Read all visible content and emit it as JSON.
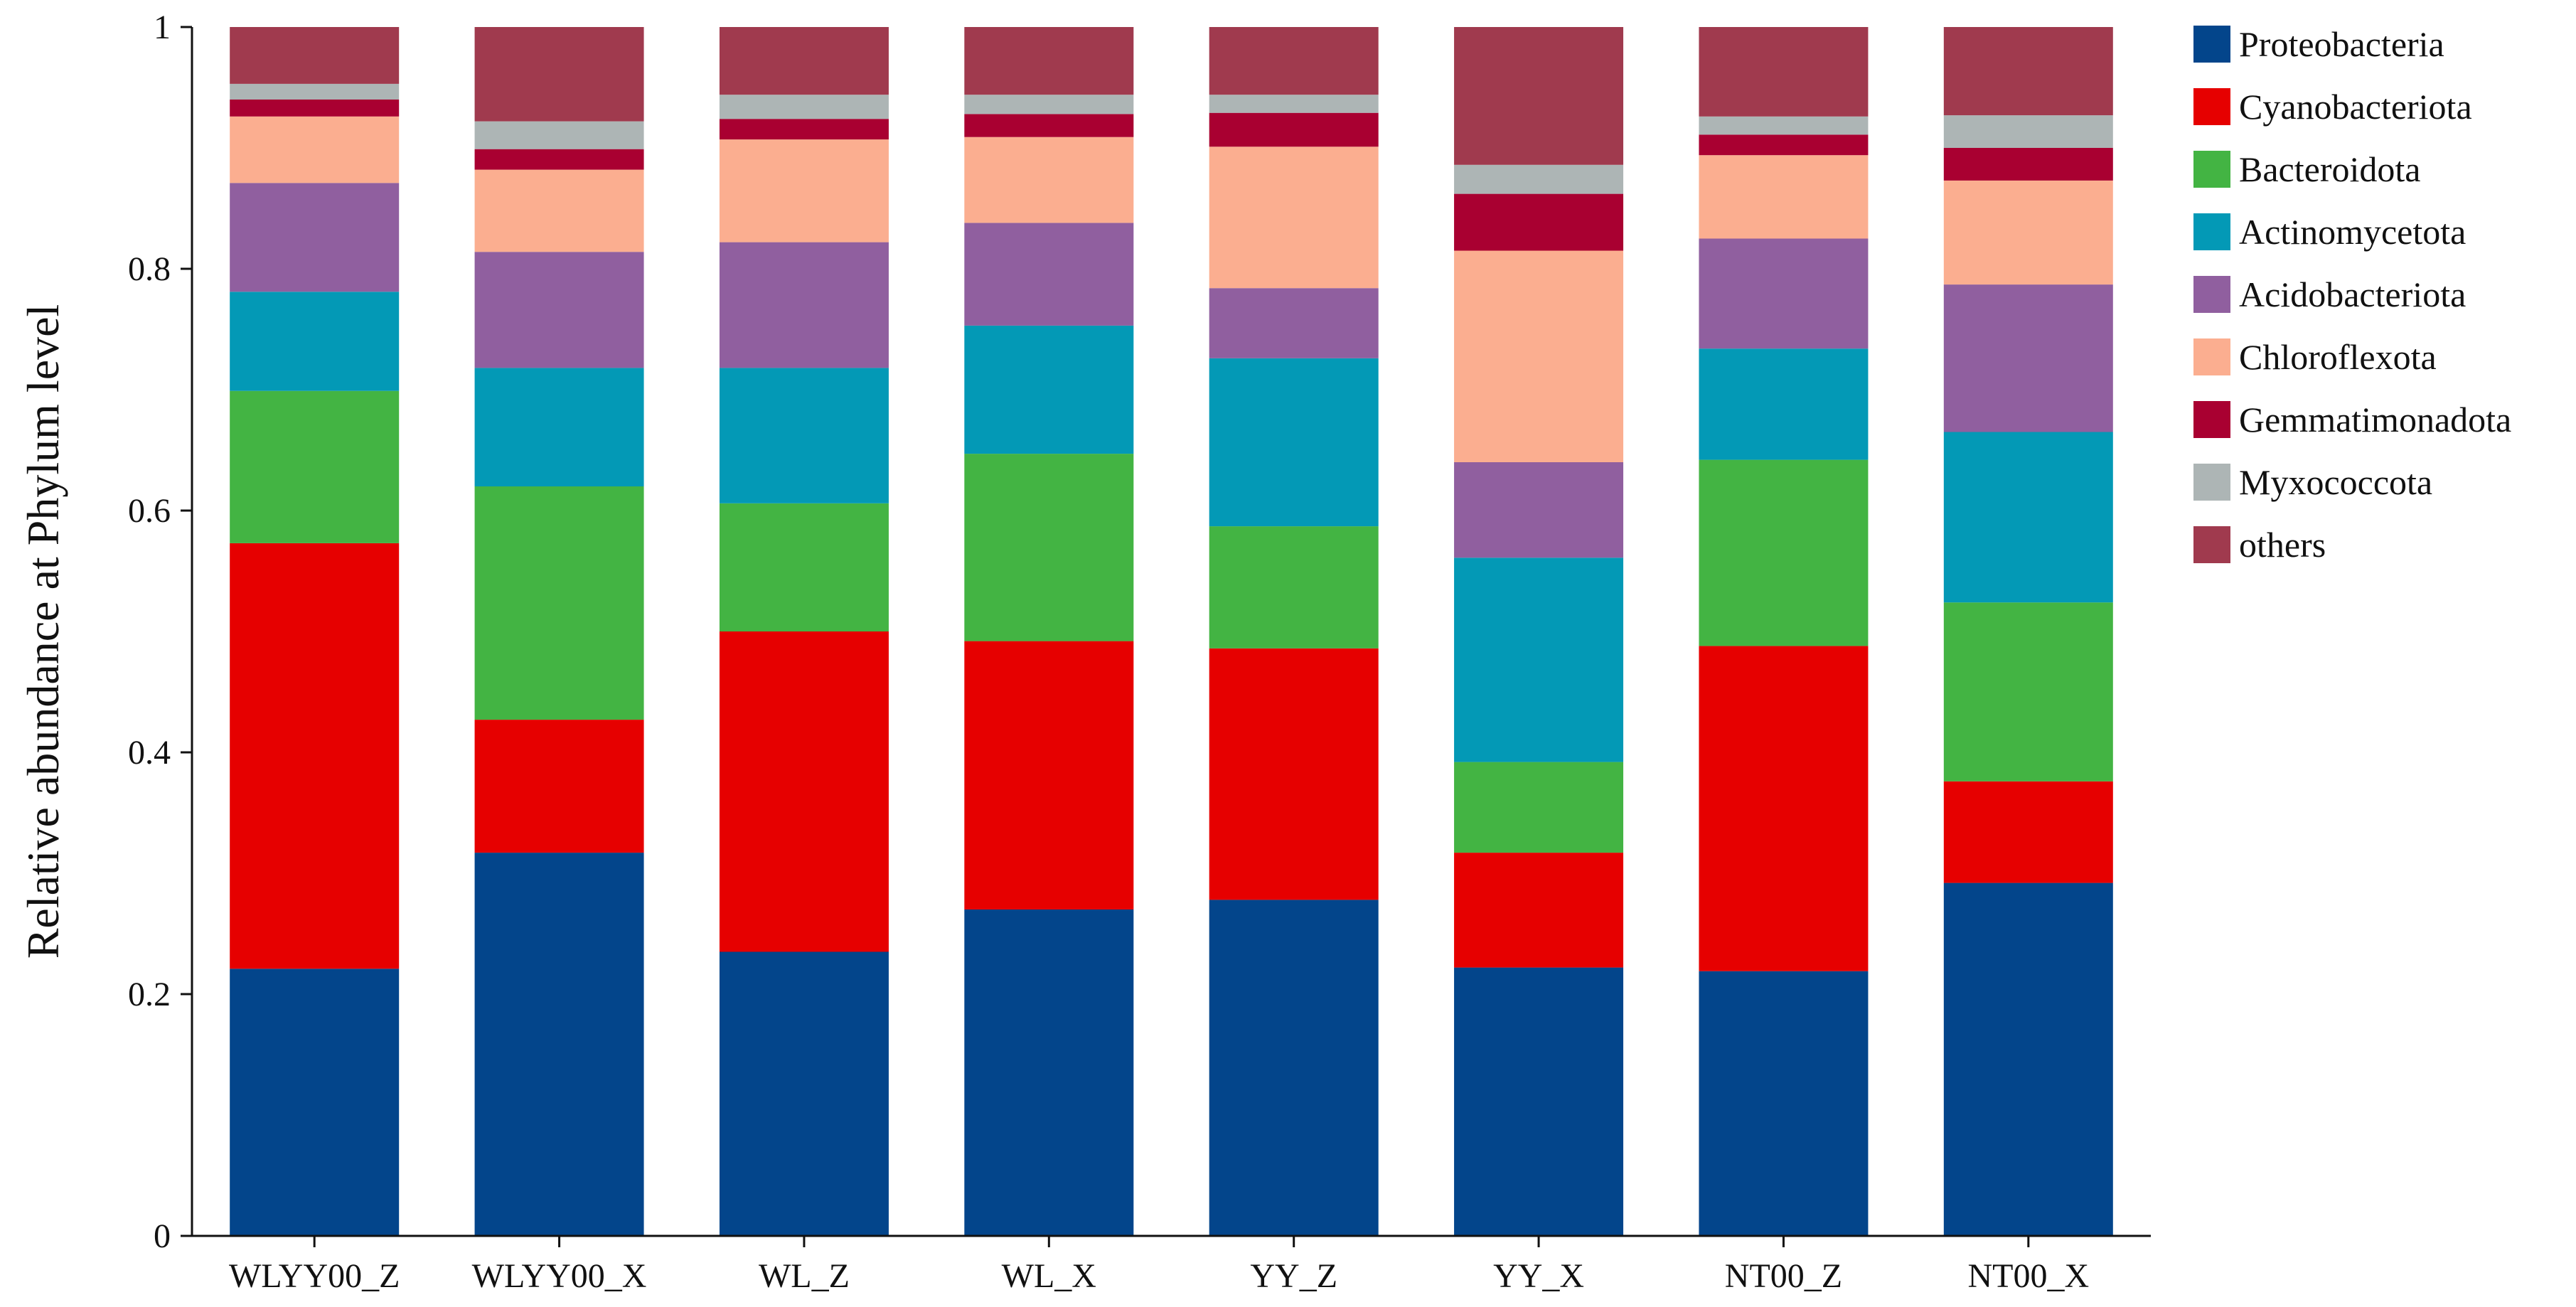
{
  "chart_data": {
    "type": "bar",
    "stacked": true,
    "title": "",
    "xlabel": "",
    "ylabel": "Relative abundance at Phylum level",
    "ylim": [
      0,
      1
    ],
    "yticks": [
      "0",
      "0.2",
      "0.4",
      "0.6",
      "0.8",
      "1"
    ],
    "ytick_values": [
      0,
      0.2,
      0.4,
      0.6,
      0.8,
      1
    ],
    "legend_position": "right",
    "categories": [
      "WLYY00_Z",
      "WLYY00_X",
      "WL_Z",
      "WL_X",
      "YY_Z",
      "YY_X",
      "NT00_Z",
      "NT00_X"
    ],
    "series": [
      {
        "name": "Proteobacteria",
        "color": "#03458b",
        "values": [
          0.221,
          0.317,
          0.235,
          0.27,
          0.278,
          0.222,
          0.219,
          0.292
        ]
      },
      {
        "name": "Cyanobacteriota",
        "color": "#e60000",
        "values": [
          0.352,
          0.11,
          0.265,
          0.222,
          0.208,
          0.095,
          0.269,
          0.084
        ]
      },
      {
        "name": "Bacteroidota",
        "color": "#43b443",
        "values": [
          0.126,
          0.193,
          0.106,
          0.155,
          0.101,
          0.075,
          0.154,
          0.148
        ]
      },
      {
        "name": "Actinomycetota",
        "color": "#0399b6",
        "values": [
          0.082,
          0.098,
          0.112,
          0.106,
          0.139,
          0.169,
          0.092,
          0.141
        ]
      },
      {
        "name": "Acidobacteriota",
        "color": "#905f9f",
        "values": [
          0.09,
          0.096,
          0.104,
          0.085,
          0.058,
          0.079,
          0.091,
          0.122
        ]
      },
      {
        "name": "Chloroflexota",
        "color": "#fbae90",
        "values": [
          0.055,
          0.068,
          0.085,
          0.071,
          0.117,
          0.175,
          0.069,
          0.086
        ]
      },
      {
        "name": "Gemmatimonadota",
        "color": "#a90031",
        "values": [
          0.014,
          0.017,
          0.017,
          0.019,
          0.028,
          0.047,
          0.017,
          0.027
        ]
      },
      {
        "name": "Myxococcota",
        "color": "#adb5b5",
        "values": [
          0.013,
          0.023,
          0.02,
          0.016,
          0.015,
          0.024,
          0.015,
          0.027
        ]
      },
      {
        "name": "others",
        "color": "#a03a4e",
        "values": [
          0.047,
          0.078,
          0.056,
          0.056,
          0.056,
          0.114,
          0.074,
          0.073
        ]
      }
    ]
  }
}
